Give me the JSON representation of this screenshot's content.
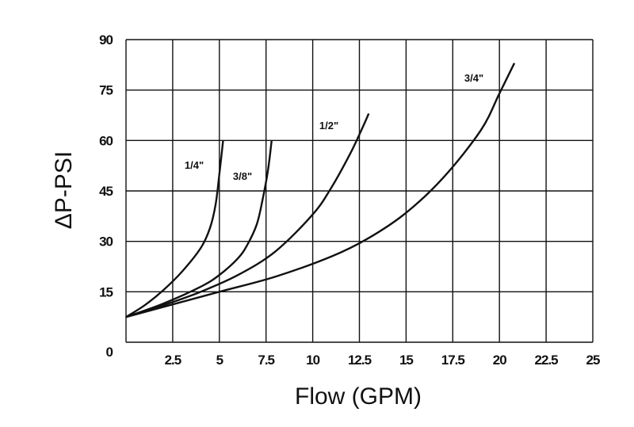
{
  "chart_data": {
    "type": "line",
    "xlabel": "Flow (GPM)",
    "ylabel": "ΔP-PSI",
    "xlim": [
      0,
      25
    ],
    "ylim": [
      0,
      90
    ],
    "x_ticks": [
      "2.5",
      "5",
      "7.5",
      "10",
      "12.5",
      "15",
      "17.5",
      "20",
      "22.5",
      "25"
    ],
    "y_ticks": [
      "0",
      "15",
      "30",
      "45",
      "60",
      "75",
      "90"
    ],
    "grid": true,
    "line_color": "#111111",
    "series": [
      {
        "name": "1/4\"",
        "x": [
          0,
          1,
          2,
          3,
          4,
          4.5,
          4.8,
          5,
          5.2
        ],
        "y": [
          7.5,
          11,
          15.5,
          21,
          28,
          34,
          41,
          50,
          60
        ]
      },
      {
        "name": "3/8\"",
        "x": [
          0,
          2,
          4,
          5,
          6,
          6.5,
          7,
          7.3,
          7.6,
          7.8
        ],
        "y": [
          7.5,
          11.5,
          16.5,
          20,
          25,
          29,
          35,
          42,
          51,
          60
        ]
      },
      {
        "name": "1/2\"",
        "x": [
          0,
          2,
          4,
          6,
          8,
          10,
          11,
          12,
          12.6,
          13
        ],
        "y": [
          7.5,
          11,
          15,
          20,
          27,
          38,
          46,
          56,
          63,
          68
        ]
      },
      {
        "name": "3/4\"",
        "x": [
          0,
          2,
          5,
          8,
          11,
          13,
          15,
          17,
          19,
          20,
          20.8
        ],
        "y": [
          7.5,
          10.5,
          15,
          19.5,
          25.5,
          31,
          38.5,
          49,
          63,
          74,
          83
        ]
      }
    ]
  }
}
